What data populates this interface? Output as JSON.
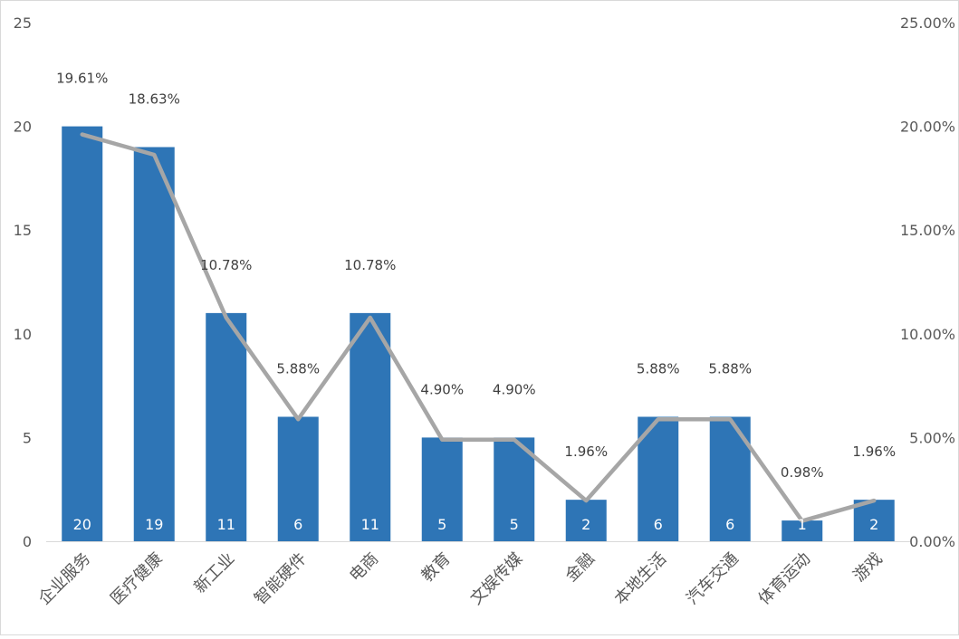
{
  "chart_data": {
    "type": "bar",
    "categories": [
      "企业服务",
      "医疗健康",
      "新工业",
      "智能硬件",
      "电商",
      "教育",
      "文娱传媒",
      "金融",
      "本地生活",
      "汽车交通",
      "体育运动",
      "游戏"
    ],
    "series": [
      {
        "type": "bar",
        "axis": "left",
        "color": "#2e75b6",
        "values": [
          20,
          19,
          11,
          6,
          11,
          5,
          5,
          2,
          6,
          6,
          1,
          2
        ],
        "labels": [
          "20",
          "19",
          "11",
          "6",
          "11",
          "5",
          "5",
          "2",
          "6",
          "6",
          "1",
          "2"
        ]
      },
      {
        "type": "line",
        "axis": "right",
        "color": "#a6a6a6",
        "values": [
          19.61,
          18.63,
          10.78,
          5.88,
          10.78,
          4.9,
          4.9,
          1.96,
          5.88,
          5.88,
          0.98,
          1.96
        ],
        "labels": [
          "19.61%",
          "18.63%",
          "10.78%",
          "5.88%",
          "10.78%",
          "4.90%",
          "4.90%",
          "1.96%",
          "5.88%",
          "5.88%",
          "0.98%",
          "1.96%"
        ]
      }
    ],
    "y_left": {
      "ylim": [
        0,
        25
      ],
      "ticks": [
        "0",
        "5",
        "10",
        "15",
        "20",
        "25"
      ]
    },
    "y_right": {
      "ylim": [
        0,
        25
      ],
      "ticks": [
        "0.00%",
        "5.00%",
        "10.00%",
        "15.00%",
        "20.00%",
        "25.00%"
      ]
    },
    "grid": false,
    "legend": "none"
  }
}
